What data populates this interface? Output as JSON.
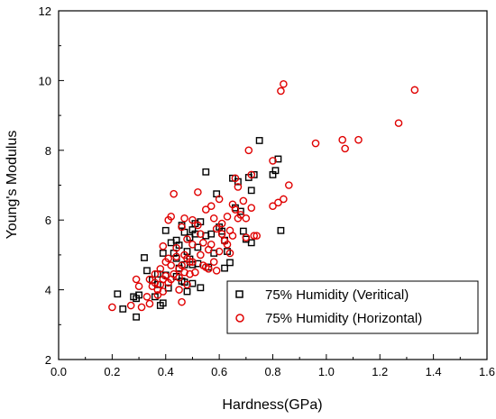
{
  "chart_data": {
    "type": "scatter",
    "title": "",
    "xlabel": "Hardness(GPa)",
    "ylabel": "Young's Modulus",
    "xlim": [
      0.0,
      1.6
    ],
    "ylim": [
      2,
      12
    ],
    "xticks": [
      "0.0",
      "0.2",
      "0.4",
      "0.6",
      "0.8",
      "1.0",
      "1.2",
      "1.4",
      "1.6"
    ],
    "yticks": [
      "2",
      "4",
      "6",
      "8",
      "10",
      "12"
    ],
    "grid": false,
    "legend_position": "bottom-right",
    "series": [
      {
        "name": "75% Humidity (Veritical)",
        "marker": "square",
        "color": "#000000",
        "points": [
          [
            0.22,
            3.88
          ],
          [
            0.24,
            3.45
          ],
          [
            0.28,
            3.8
          ],
          [
            0.29,
            3.75
          ],
          [
            0.29,
            3.22
          ],
          [
            0.3,
            3.85
          ],
          [
            0.32,
            4.92
          ],
          [
            0.33,
            4.55
          ],
          [
            0.35,
            4.28
          ],
          [
            0.36,
            3.8
          ],
          [
            0.37,
            4.15
          ],
          [
            0.38,
            3.55
          ],
          [
            0.39,
            3.62
          ],
          [
            0.39,
            5.05
          ],
          [
            0.4,
            5.7
          ],
          [
            0.4,
            4.42
          ],
          [
            0.41,
            4.05
          ],
          [
            0.42,
            5.35
          ],
          [
            0.43,
            5.05
          ],
          [
            0.44,
            5.42
          ],
          [
            0.44,
            4.9
          ],
          [
            0.45,
            4.62
          ],
          [
            0.45,
            5.28
          ],
          [
            0.46,
            5.85
          ],
          [
            0.46,
            4.25
          ],
          [
            0.47,
            4.72
          ],
          [
            0.47,
            4.22
          ],
          [
            0.48,
            3.95
          ],
          [
            0.48,
            5.1
          ],
          [
            0.49,
            5.5
          ],
          [
            0.49,
            4.88
          ],
          [
            0.5,
            4.18
          ],
          [
            0.5,
            4.72
          ],
          [
            0.51,
            5.6
          ],
          [
            0.51,
            5.9
          ],
          [
            0.52,
            4.75
          ],
          [
            0.52,
            5.22
          ],
          [
            0.53,
            5.95
          ],
          [
            0.53,
            4.06
          ],
          [
            0.55,
            7.38
          ],
          [
            0.55,
            5.55
          ],
          [
            0.56,
            4.65
          ],
          [
            0.57,
            5.6
          ],
          [
            0.58,
            5.05
          ],
          [
            0.59,
            6.75
          ],
          [
            0.6,
            5.8
          ],
          [
            0.61,
            5.68
          ],
          [
            0.62,
            4.62
          ],
          [
            0.62,
            5.42
          ],
          [
            0.63,
            5.1
          ],
          [
            0.64,
            4.78
          ],
          [
            0.65,
            7.2
          ],
          [
            0.66,
            6.35
          ],
          [
            0.67,
            7.1
          ],
          [
            0.68,
            6.25
          ],
          [
            0.69,
            5.68
          ],
          [
            0.7,
            5.45
          ],
          [
            0.71,
            7.22
          ],
          [
            0.72,
            6.85
          ],
          [
            0.72,
            5.35
          ],
          [
            0.73,
            7.3
          ],
          [
            0.75,
            8.28
          ],
          [
            0.8,
            7.3
          ],
          [
            0.81,
            7.42
          ],
          [
            0.82,
            7.75
          ],
          [
            0.83,
            5.7
          ],
          [
            0.37,
            4.45
          ],
          [
            0.44,
            4.38
          ],
          [
            0.47,
            5.65
          ],
          [
            0.5,
            5.72
          ]
        ]
      },
      {
        "name": "75% Humidity (Horizontal)",
        "marker": "circle",
        "color": "#e00000",
        "points": [
          [
            0.2,
            3.5
          ],
          [
            0.27,
            3.55
          ],
          [
            0.29,
            4.3
          ],
          [
            0.3,
            4.1
          ],
          [
            0.31,
            3.5
          ],
          [
            0.33,
            3.8
          ],
          [
            0.34,
            4.3
          ],
          [
            0.34,
            3.6
          ],
          [
            0.35,
            4.1
          ],
          [
            0.36,
            4.2
          ],
          [
            0.36,
            4.45
          ],
          [
            0.37,
            3.85
          ],
          [
            0.37,
            4.0
          ],
          [
            0.38,
            4.15
          ],
          [
            0.38,
            4.6
          ],
          [
            0.39,
            3.95
          ],
          [
            0.39,
            4.3
          ],
          [
            0.39,
            5.25
          ],
          [
            0.4,
            4.8
          ],
          [
            0.4,
            4.4
          ],
          [
            0.41,
            6.0
          ],
          [
            0.41,
            4.2
          ],
          [
            0.41,
            4.9
          ],
          [
            0.42,
            6.1
          ],
          [
            0.42,
            4.3
          ],
          [
            0.42,
            4.7
          ],
          [
            0.43,
            6.75
          ],
          [
            0.43,
            4.45
          ],
          [
            0.44,
            4.95
          ],
          [
            0.44,
            5.2
          ],
          [
            0.45,
            4.6
          ],
          [
            0.45,
            4.0
          ],
          [
            0.45,
            4.35
          ],
          [
            0.46,
            4.7
          ],
          [
            0.46,
            3.65
          ],
          [
            0.46,
            5.8
          ],
          [
            0.47,
            4.5
          ],
          [
            0.47,
            5.0
          ],
          [
            0.47,
            6.05
          ],
          [
            0.48,
            4.9
          ],
          [
            0.48,
            5.45
          ],
          [
            0.48,
            4.15
          ],
          [
            0.49,
            4.8
          ],
          [
            0.49,
            4.45
          ],
          [
            0.5,
            6.0
          ],
          [
            0.5,
            5.3
          ],
          [
            0.5,
            4.8
          ],
          [
            0.51,
            4.5
          ],
          [
            0.52,
            6.8
          ],
          [
            0.52,
            5.85
          ],
          [
            0.53,
            5.6
          ],
          [
            0.53,
            5.0
          ],
          [
            0.54,
            5.35
          ],
          [
            0.54,
            4.7
          ],
          [
            0.55,
            6.3
          ],
          [
            0.55,
            4.65
          ],
          [
            0.56,
            5.15
          ],
          [
            0.56,
            4.6
          ],
          [
            0.57,
            5.3
          ],
          [
            0.57,
            6.4
          ],
          [
            0.58,
            6.05
          ],
          [
            0.58,
            4.8
          ],
          [
            0.59,
            5.75
          ],
          [
            0.59,
            4.55
          ],
          [
            0.6,
            6.6
          ],
          [
            0.6,
            5.1
          ],
          [
            0.61,
            5.6
          ],
          [
            0.61,
            5.9
          ],
          [
            0.62,
            5.4
          ],
          [
            0.63,
            6.1
          ],
          [
            0.63,
            5.3
          ],
          [
            0.64,
            5.7
          ],
          [
            0.64,
            5.05
          ],
          [
            0.65,
            6.45
          ],
          [
            0.65,
            5.55
          ],
          [
            0.66,
            6.3
          ],
          [
            0.66,
            7.2
          ],
          [
            0.67,
            6.05
          ],
          [
            0.67,
            6.95
          ],
          [
            0.68,
            6.15
          ],
          [
            0.69,
            6.55
          ],
          [
            0.7,
            6.05
          ],
          [
            0.7,
            5.5
          ],
          [
            0.71,
            8.0
          ],
          [
            0.72,
            7.3
          ],
          [
            0.72,
            6.35
          ],
          [
            0.73,
            5.55
          ],
          [
            0.74,
            5.55
          ],
          [
            0.8,
            7.7
          ],
          [
            0.8,
            6.4
          ],
          [
            0.82,
            6.5
          ],
          [
            0.83,
            9.7
          ],
          [
            0.84,
            9.9
          ],
          [
            0.84,
            6.6
          ],
          [
            0.86,
            7.0
          ],
          [
            0.96,
            8.2
          ],
          [
            1.06,
            8.3
          ],
          [
            1.07,
            8.05
          ],
          [
            1.12,
            8.3
          ],
          [
            1.27,
            8.78
          ],
          [
            1.33,
            9.73
          ]
        ]
      }
    ]
  }
}
